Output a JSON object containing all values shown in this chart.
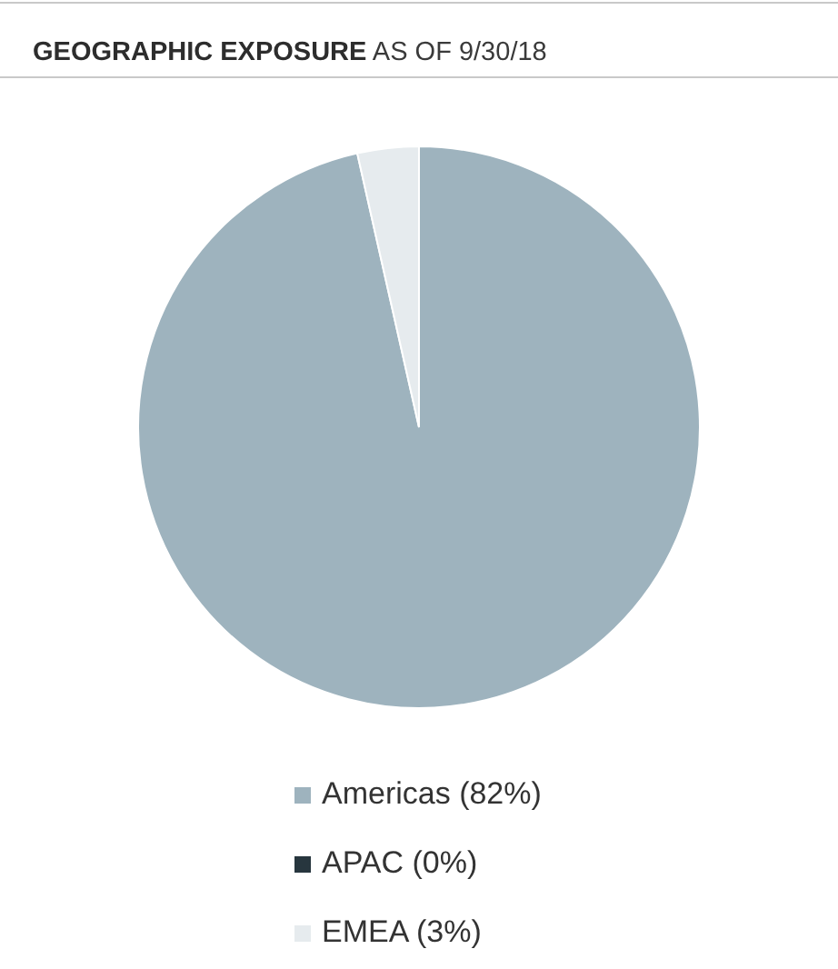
{
  "chart_data": {
    "type": "pie",
    "title": "GEOGRAPHIC EXPOSURE",
    "subtitle": "AS OF 9/30/18",
    "categories": [
      "Americas (82%)",
      "APAC (0%)",
      "EMEA (3%)"
    ],
    "values": [
      82,
      0,
      3
    ],
    "colors": [
      "#9eb3be",
      "#27363e",
      "#e6ebee"
    ],
    "legend": "bottom"
  }
}
